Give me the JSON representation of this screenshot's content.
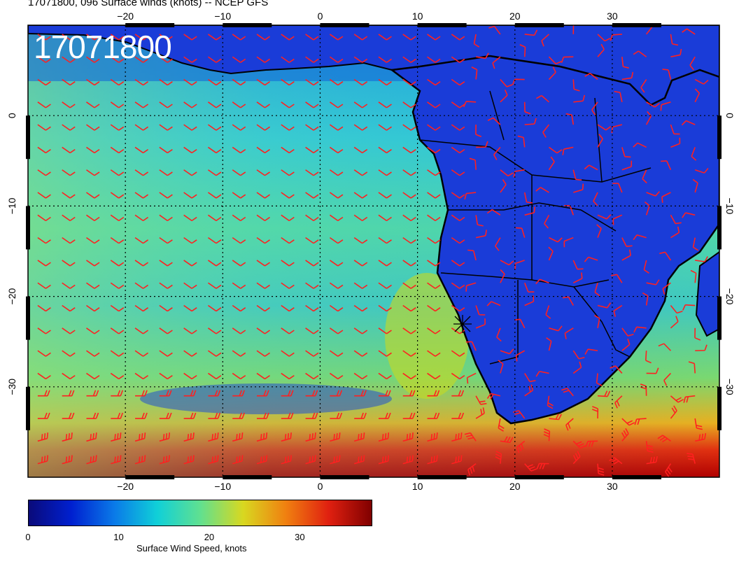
{
  "header": {
    "title": "17071800, 096 Surface winds (knots) -- NCEP GFS",
    "date_label": "17071800"
  },
  "map": {
    "lon_ticks": [
      "−20",
      "−10",
      "0",
      "10",
      "20",
      "30"
    ],
    "lat_ticks": [
      "0",
      "−10",
      "−20",
      "−30"
    ],
    "lon_values": [
      -20,
      -10,
      0,
      10,
      20,
      30
    ],
    "lat_values": [
      0,
      -10,
      -20,
      -30
    ],
    "lon_range": [
      -30,
      41
    ],
    "lat_range": [
      -40,
      10
    ],
    "land_color": "#1a3cd8",
    "barb_color": "#ff2020",
    "coast_color": "#000000",
    "barb_spacing_deg": 2.5
  },
  "colorbar": {
    "title": "Surface Wind Speed, knots",
    "tick_labels": [
      "0",
      "10",
      "20",
      "30"
    ],
    "tick_values": [
      0,
      10,
      20,
      30
    ],
    "range": [
      0,
      38
    ],
    "colors": [
      "#0a0a7a",
      "#0020d0",
      "#0a7ae8",
      "#10d0d8",
      "#60e090",
      "#d8d820",
      "#f08010",
      "#e02010",
      "#800000"
    ]
  }
}
